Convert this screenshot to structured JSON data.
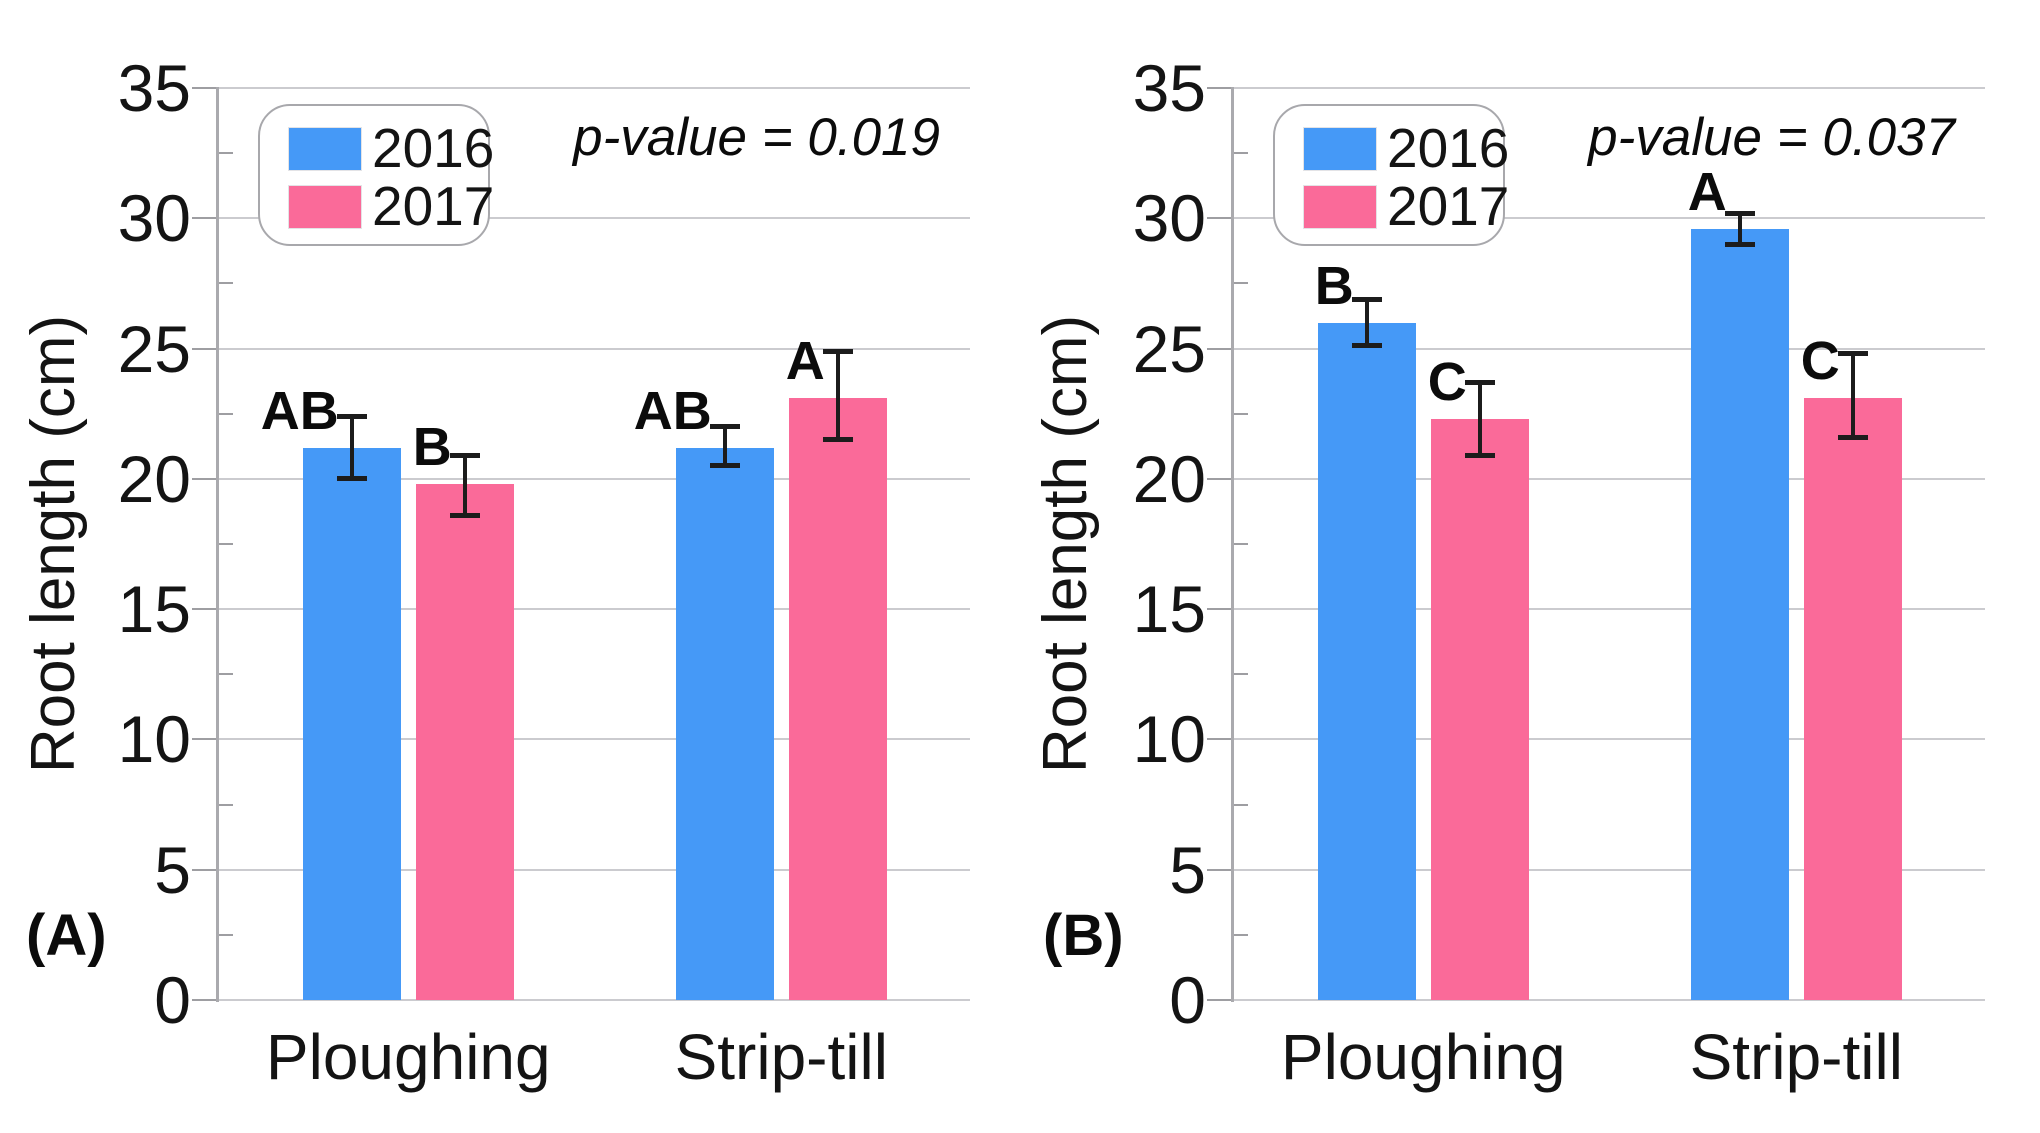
{
  "colors": {
    "year2016": "#4599F7",
    "year2017": "#FA6A99",
    "error_bar": "#1c1c1c",
    "gridline": "#cbcbcf",
    "axis_line": "#aaaaae",
    "text": "#141414"
  },
  "chart_data": [
    {
      "type": "bar",
      "panel_label": "(A)",
      "p_value_label": "p-value = 0.019",
      "ylabel": "Root length (cm)",
      "categories": [
        "Ploughing",
        "Strip-till"
      ],
      "ylim": [
        0,
        35
      ],
      "y_ticks": [
        0,
        5,
        10,
        15,
        20,
        25,
        30,
        35
      ],
      "grid": true,
      "legend_position": "top-left",
      "series": [
        {
          "name": "2016",
          "color_key": "year2016",
          "values": [
            21.2,
            21.2
          ],
          "err_low": [
            20.0,
            20.5
          ],
          "err_high": [
            22.4,
            22.0
          ],
          "sig_letters": [
            "AB",
            "AB"
          ]
        },
        {
          "name": "2017",
          "color_key": "year2017",
          "values": [
            19.8,
            23.1
          ],
          "err_low": [
            18.6,
            21.5
          ],
          "err_high": [
            20.9,
            24.9
          ],
          "sig_letters": [
            "B",
            "A"
          ]
        }
      ]
    },
    {
      "type": "bar",
      "panel_label": "(B)",
      "p_value_label": "p-value = 0.037",
      "ylabel": "Root length (cm)",
      "categories": [
        "Ploughing",
        "Strip-till"
      ],
      "ylim": [
        0,
        35
      ],
      "y_ticks": [
        0,
        5,
        10,
        15,
        20,
        25,
        30,
        35
      ],
      "grid": true,
      "legend_position": "top-left",
      "series": [
        {
          "name": "2016",
          "color_key": "year2016",
          "values": [
            26.0,
            29.6
          ],
          "err_low": [
            25.1,
            29.0
          ],
          "err_high": [
            26.9,
            30.2
          ],
          "sig_letters": [
            "B",
            "A"
          ]
        },
        {
          "name": "2017",
          "color_key": "year2017",
          "values": [
            22.3,
            23.1
          ],
          "err_low": [
            20.9,
            21.6
          ],
          "err_high": [
            23.7,
            24.8
          ],
          "sig_letters": [
            "C",
            "C"
          ]
        }
      ]
    }
  ]
}
